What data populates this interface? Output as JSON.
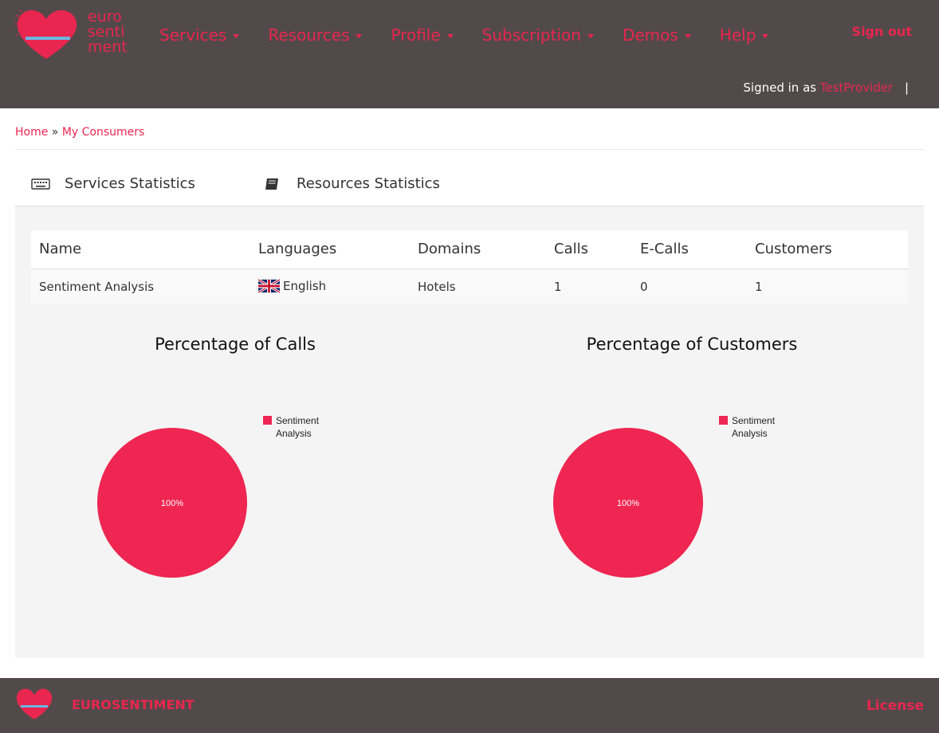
{
  "brand": {
    "logo_lines": [
      "euro",
      "senti",
      "ment"
    ],
    "accent_color": "#e8264f",
    "header_color": "#524a4a"
  },
  "nav": {
    "items": [
      {
        "label": "Services"
      },
      {
        "label": "Resources"
      },
      {
        "label": "Profile"
      },
      {
        "label": "Subscription"
      },
      {
        "label": "Demos"
      },
      {
        "label": "Help"
      }
    ],
    "sign_out": "Sign out",
    "signed_in_prefix": "Signed in as",
    "username": "TestProvider",
    "separator": "|"
  },
  "breadcrumb": {
    "home": "Home",
    "separator": "»",
    "current": "My Consumers"
  },
  "tabs": [
    {
      "label": "Services Statistics",
      "icon": "keyboard-icon"
    },
    {
      "label": "Resources Statistics",
      "icon": "book-icon"
    }
  ],
  "table": {
    "headers": [
      "Name",
      "Languages",
      "Domains",
      "Calls",
      "E-Calls",
      "Customers"
    ],
    "rows": [
      {
        "name": "Sentiment Analysis",
        "language": "English",
        "language_icon": "uk-flag-icon",
        "domain": "Hotels",
        "calls": "1",
        "ecalls": "0",
        "customers": "1"
      }
    ]
  },
  "chart_data": [
    {
      "type": "pie",
      "title": "Percentage of Calls",
      "categories": [
        "Sentiment Analysis"
      ],
      "values": [
        100
      ],
      "slice_labels": [
        "100%"
      ],
      "legend": [
        "Sentiment Analysis"
      ],
      "legend_placement": "top-right",
      "colors": [
        "#ee2651"
      ]
    },
    {
      "type": "pie",
      "title": "Percentage of Customers",
      "categories": [
        "Sentiment Analysis"
      ],
      "values": [
        100
      ],
      "slice_labels": [
        "100%"
      ],
      "legend": [
        "Sentiment Analysis"
      ],
      "legend_placement": "top-right",
      "colors": [
        "#ee2651"
      ]
    }
  ],
  "footer": {
    "brand": "EUROSENTIMENT",
    "license": "License"
  }
}
